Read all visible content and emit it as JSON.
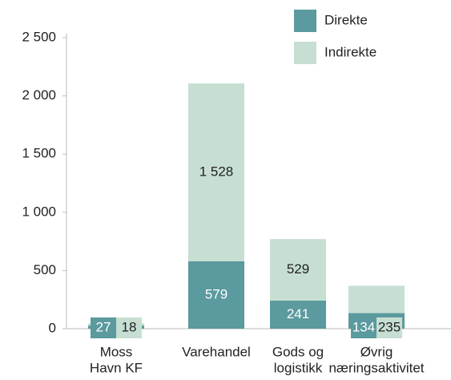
{
  "chart_data": {
    "type": "stacked_bar",
    "categories": [
      [
        "Moss",
        "Havn KF"
      ],
      [
        "Varehandel"
      ],
      [
        "Gods og",
        "logistikk"
      ],
      [
        "Øvrig",
        "næringsaktivitet"
      ]
    ],
    "series": [
      {
        "name": "Direkte",
        "color": "#5b9a9e",
        "values": [
          27,
          579,
          241,
          134
        ]
      },
      {
        "name": "Indirekte",
        "color": "#c6dfd2",
        "values": [
          18,
          1528,
          529,
          235
        ],
        "value_labels": [
          "18",
          "1 528",
          "529",
          "235"
        ]
      }
    ],
    "ylim": [
      0,
      2500
    ],
    "yticks": [
      0,
      500,
      {
        "value": 1000,
        "label": "1 000"
      },
      {
        "value": 1500,
        "label": "1 500"
      },
      {
        "value": 2000,
        "label": "2 000"
      },
      {
        "value": 2500,
        "label": "2 500"
      }
    ],
    "grid": false,
    "legend": "top-right"
  }
}
